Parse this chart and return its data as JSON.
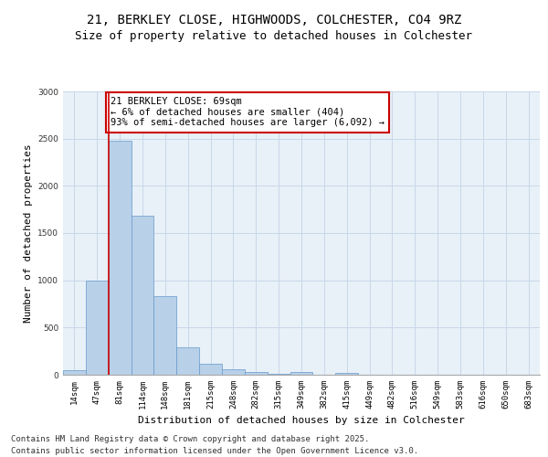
{
  "title_line1": "21, BERKLEY CLOSE, HIGHWOODS, COLCHESTER, CO4 9RZ",
  "title_line2": "Size of property relative to detached houses in Colchester",
  "xlabel": "Distribution of detached houses by size in Colchester",
  "ylabel": "Number of detached properties",
  "categories": [
    "14sqm",
    "47sqm",
    "81sqm",
    "114sqm",
    "148sqm",
    "181sqm",
    "215sqm",
    "248sqm",
    "282sqm",
    "315sqm",
    "349sqm",
    "382sqm",
    "415sqm",
    "449sqm",
    "482sqm",
    "516sqm",
    "549sqm",
    "583sqm",
    "616sqm",
    "650sqm",
    "683sqm"
  ],
  "values": [
    50,
    1000,
    2480,
    1680,
    830,
    290,
    120,
    55,
    30,
    5,
    30,
    0,
    20,
    0,
    0,
    0,
    0,
    0,
    0,
    0,
    0
  ],
  "bar_color": "#b8d0e8",
  "bar_edgecolor": "#6699cc",
  "vline_x_index": 1.5,
  "vline_color": "#cc0000",
  "annotation_text": "21 BERKLEY CLOSE: 69sqm\n← 6% of detached houses are smaller (404)\n93% of semi-detached houses are larger (6,092) →",
  "annotation_box_edgecolor": "#cc0000",
  "annotation_box_facecolor": "#ffffff",
  "ylim": [
    0,
    3000
  ],
  "yticks": [
    0,
    500,
    1000,
    1500,
    2000,
    2500,
    3000
  ],
  "grid_color": "#c8d8e8",
  "background_color": "#e8f0f8",
  "footer_line1": "Contains HM Land Registry data © Crown copyright and database right 2025.",
  "footer_line2": "Contains public sector information licensed under the Open Government Licence v3.0.",
  "title_fontsize": 10,
  "subtitle_fontsize": 9,
  "axis_label_fontsize": 8,
  "tick_fontsize": 6.5,
  "annotation_fontsize": 7.5,
  "footer_fontsize": 6.5
}
